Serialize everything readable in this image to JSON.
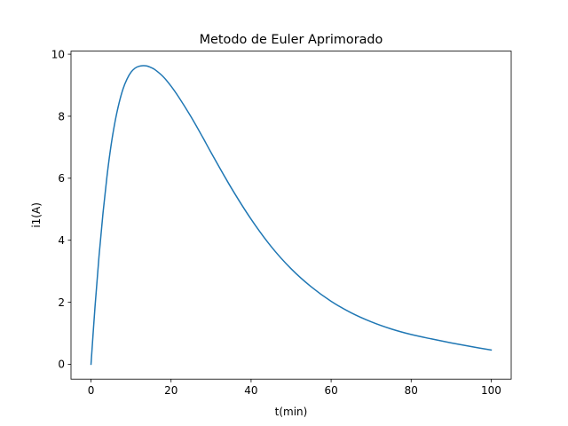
{
  "chart_data": {
    "type": "line",
    "title": "Metodo de Euler Aprimorado",
    "xlabel": "t(min)",
    "ylabel": "i1(A)",
    "xlim": [
      -5,
      105
    ],
    "ylim": [
      -0.48,
      10.1
    ],
    "xticks": [
      0,
      20,
      40,
      60,
      80,
      100
    ],
    "yticks": [
      0,
      2,
      4,
      6,
      8,
      10
    ],
    "xtick_labels": [
      "0",
      "20",
      "40",
      "60",
      "80",
      "100"
    ],
    "ytick_labels": [
      "0",
      "2",
      "4",
      "6",
      "8",
      "10"
    ],
    "grid": false,
    "series": [
      {
        "color": "#1f77b4",
        "x": [
          0,
          1,
          2,
          3,
          4,
          5,
          6,
          7,
          8,
          9,
          10,
          11,
          12,
          13,
          14,
          15,
          16,
          18,
          20,
          22,
          25,
          28,
          30,
          35,
          40,
          45,
          50,
          55,
          60,
          65,
          70,
          75,
          80,
          85,
          90,
          95,
          100
        ],
        "y": [
          0,
          1.85,
          3.48,
          4.88,
          6.07,
          7.05,
          7.82,
          8.42,
          8.88,
          9.2,
          9.42,
          9.55,
          9.61,
          9.63,
          9.62,
          9.57,
          9.5,
          9.28,
          8.97,
          8.6,
          7.98,
          7.3,
          6.83,
          5.7,
          4.68,
          3.8,
          3.08,
          2.5,
          2.03,
          1.66,
          1.37,
          1.14,
          0.96,
          0.82,
          0.69,
          0.57,
          0.46
        ]
      }
    ]
  }
}
